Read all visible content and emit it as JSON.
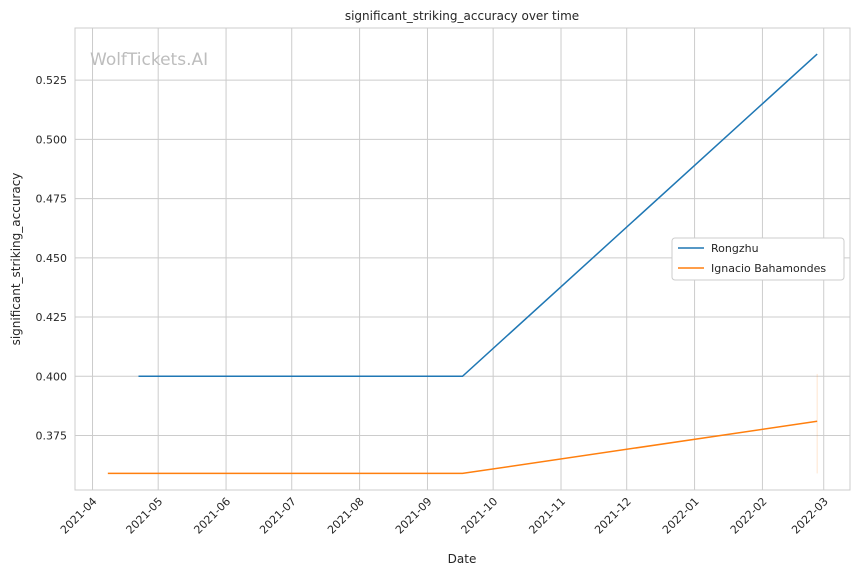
{
  "chart_data": {
    "type": "line",
    "title": "significant_striking_accuracy over time",
    "xlabel": "Date",
    "ylabel": "significant_striking_accuracy",
    "watermark": "WolfTickets.AI",
    "x_ticks": [
      "2021-04",
      "2021-05",
      "2021-06",
      "2021-07",
      "2021-08",
      "2021-09",
      "2021-10",
      "2021-11",
      "2021-12",
      "2022-01",
      "2022-02",
      "2022-03"
    ],
    "y_ticks": [
      "0.375",
      "0.400",
      "0.425",
      "0.450",
      "0.475",
      "0.500",
      "0.525"
    ],
    "xlim": [
      "2021-03-24",
      "2022-03-13"
    ],
    "ylim": [
      0.352,
      0.547
    ],
    "grid": true,
    "legend_placement": "center-right",
    "series": [
      {
        "name": "Rongzhu",
        "color": "#1f77b4",
        "x": [
          "2021-04-22",
          "2021-09-17",
          "2022-02-26"
        ],
        "y": [
          0.4,
          0.4,
          0.536
        ]
      },
      {
        "name": "Ignacio Bahamondes",
        "color": "#ff7f0e",
        "x": [
          "2021-04-08",
          "2021-09-17",
          "2022-02-26"
        ],
        "y": [
          0.359,
          0.359,
          0.381
        ],
        "band_at_end": [
          0.359,
          0.401
        ]
      }
    ]
  }
}
